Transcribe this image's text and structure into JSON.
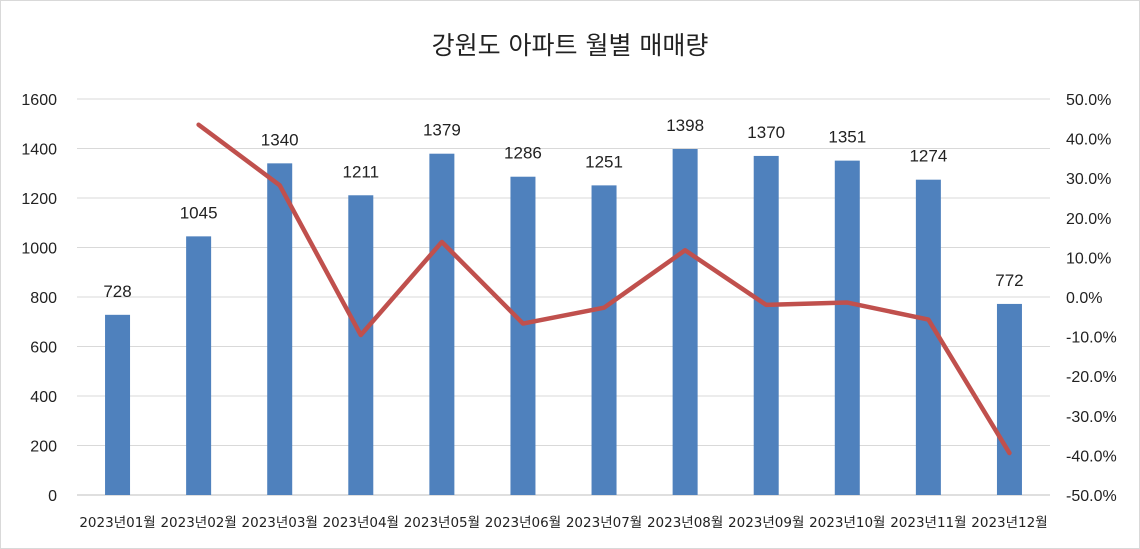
{
  "chart_data": {
    "type": "bar",
    "title": "강원도 아파트 월별 매매량",
    "categories": [
      "2023년01월",
      "2023년02월",
      "2023년03월",
      "2023년04월",
      "2023년05월",
      "2023년06월",
      "2023년07월",
      "2023년08월",
      "2023년09월",
      "2023년10월",
      "2023년11월",
      "2023년12월"
    ],
    "series": [
      {
        "type": "bar",
        "axis": "left",
        "color": "#4f81bd",
        "values": [
          728,
          1045,
          1340,
          1211,
          1379,
          1286,
          1251,
          1398,
          1370,
          1351,
          1274,
          772
        ]
      },
      {
        "type": "line",
        "axis": "right",
        "color": "#c0504d",
        "values": [
          null,
          0.435,
          0.282,
          -0.096,
          0.139,
          -0.067,
          -0.027,
          0.118,
          -0.02,
          -0.014,
          -0.057,
          -0.394
        ]
      }
    ],
    "ylim_left": [
      0,
      1600
    ],
    "yticks_left": [
      "0",
      "200",
      "400",
      "600",
      "800",
      "1000",
      "1200",
      "1400",
      "1600"
    ],
    "ylim_right": [
      -0.5,
      0.5
    ],
    "yticks_right": [
      "-50.0%",
      "-40.0%",
      "-30.0%",
      "-20.0%",
      "-10.0%",
      "0.0%",
      "10.0%",
      "20.0%",
      "30.0%",
      "40.0%",
      "50.0%"
    ],
    "data_labels": true,
    "grid": true
  }
}
